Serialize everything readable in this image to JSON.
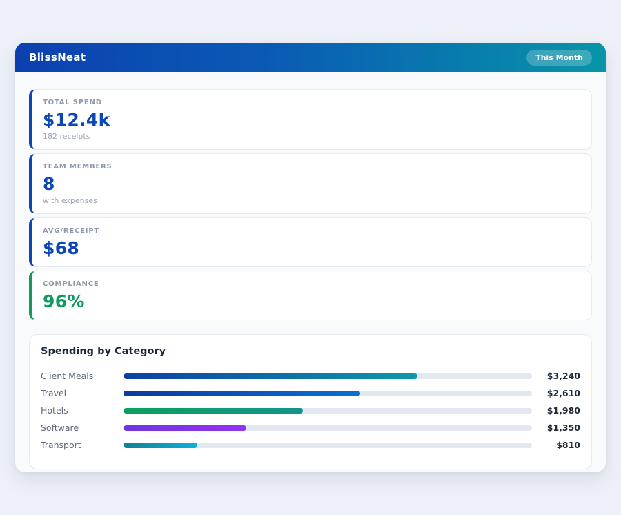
{
  "header": {
    "title": "BlissNeat",
    "badge": "This Month",
    "gradient_from": "#0c40b0",
    "gradient_to": "#0795a8"
  },
  "stats": [
    {
      "label": "TOTAL SPEND",
      "value": "$12.4k",
      "sub": "182 receipts",
      "accent": "#0d47b5",
      "value_color": "#0d47b5"
    },
    {
      "label": "TEAM MEMBERS",
      "value": "8",
      "sub": "with expenses",
      "accent": "#0d47b5",
      "value_color": "#0d47b5"
    },
    {
      "label": "AVG/RECEIPT",
      "value": "$68",
      "sub": "",
      "accent": "#0d47b5",
      "value_color": "#0d47b5"
    },
    {
      "label": "COMPLIANCE",
      "value": "96%",
      "sub": "",
      "accent": "#0f9b60",
      "value_color": "#0f9b60"
    }
  ],
  "chart_data": {
    "type": "bar",
    "orientation": "horizontal",
    "title": "Spending by Category",
    "categories": [
      "Client Meals",
      "Travel",
      "Hotels",
      "Software",
      "Transport"
    ],
    "values": [
      3240,
      2610,
      1980,
      1350,
      810
    ],
    "value_labels": [
      "$3,240",
      "$2,610",
      "$1,980",
      "$1,350",
      "$810"
    ],
    "xlim": [
      0,
      4500
    ],
    "grid": false,
    "legend": "none",
    "track_color": "#e2e8f0",
    "bar_gradients": [
      {
        "from": "#0d3fa6",
        "to": "#0d9aa8"
      },
      {
        "from": "#0b3aa0",
        "to": "#0a6fd6"
      },
      {
        "from": "#0aa05c",
        "to": "#12948c"
      },
      {
        "from": "#7334e0",
        "to": "#9333ee"
      },
      {
        "from": "#127f96",
        "to": "#0cb2d6"
      }
    ]
  }
}
